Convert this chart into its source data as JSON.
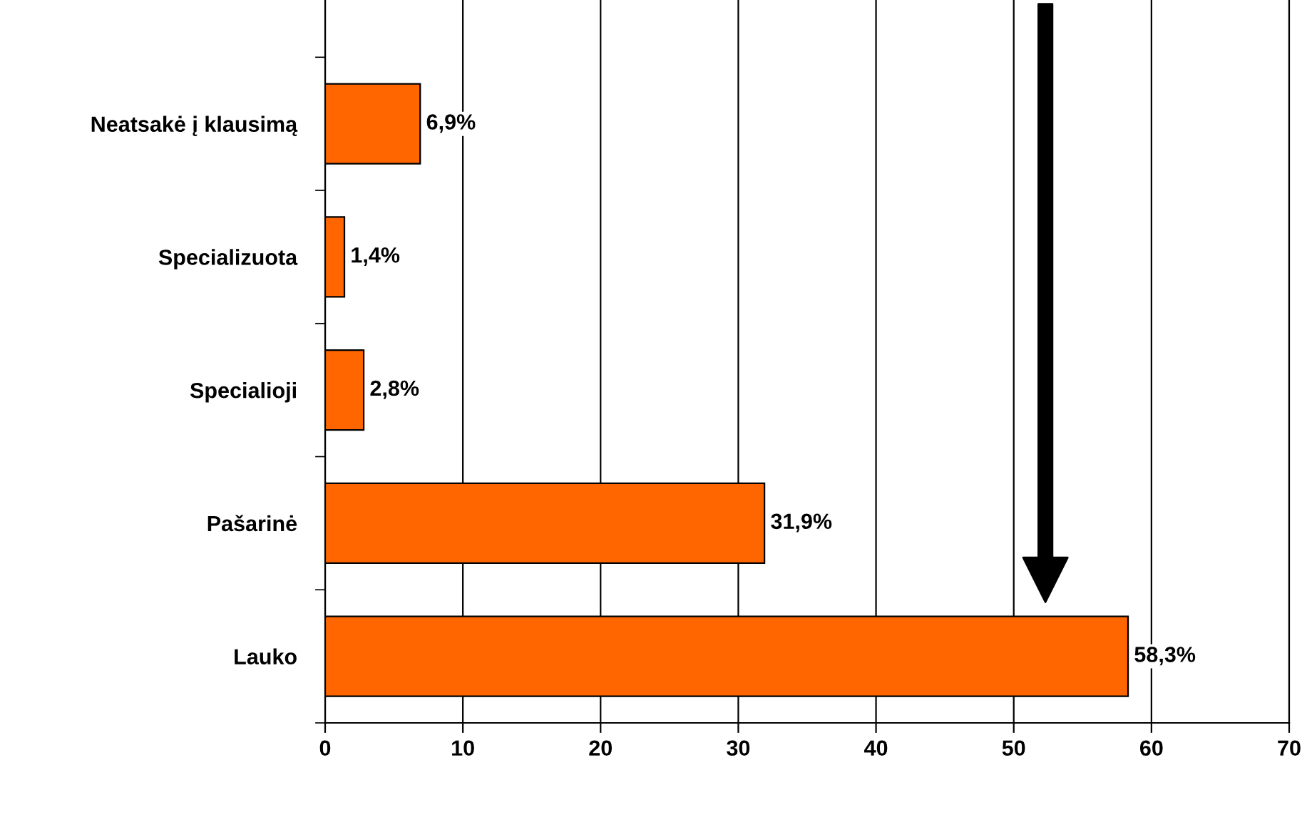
{
  "chart_data": {
    "type": "bar",
    "orientation": "horizontal",
    "categories": [
      "Neatsakė į klausimą",
      "Specializuota",
      "Specialioji",
      "Pašarinė",
      "Lauko"
    ],
    "values": [
      6.9,
      1.4,
      2.8,
      31.9,
      58.3
    ],
    "value_labels": [
      "6,9%",
      "1,4%",
      "2,8%",
      "31,9%",
      "58,3%"
    ],
    "color": "#ff6600",
    "xlim": [
      0,
      70
    ],
    "xticks": [
      0,
      10,
      20,
      30,
      40,
      50,
      60,
      70
    ],
    "grid": "x",
    "legend": false
  }
}
